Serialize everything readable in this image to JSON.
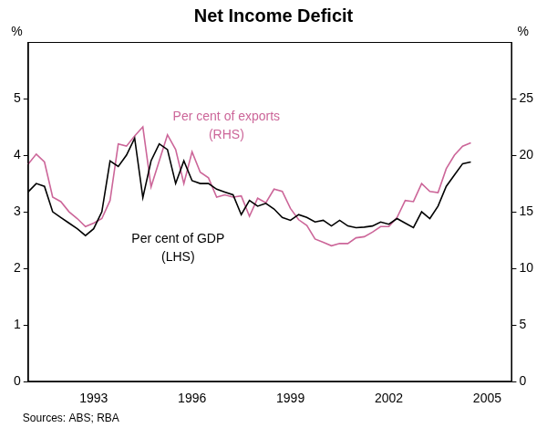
{
  "chart_data": {
    "type": "line",
    "title": "Net Income Deficit",
    "ylabel": "%",
    "y2label": "%",
    "source": "Sources: ABS; RBA",
    "categories": [
      null,
      null,
      null,
      null,
      null,
      null,
      null,
      null,
      "1993",
      null,
      null,
      null,
      null,
      null,
      null,
      null,
      null,
      null,
      null,
      null,
      "1996",
      null,
      null,
      null,
      null,
      null,
      null,
      null,
      null,
      null,
      null,
      null,
      "1999",
      null,
      null,
      null,
      null,
      null,
      null,
      null,
      null,
      null,
      null,
      null,
      "2002",
      null,
      null,
      null,
      null,
      null,
      null,
      null,
      null,
      null,
      null,
      null,
      "2005",
      null,
      null,
      null
    ],
    "series": [
      {
        "name": "Per cent of GDP (LHS)",
        "color": "#000000",
        "axis": "y",
        "values": [
          3.35,
          3.5,
          3.45,
          3.0,
          2.9,
          2.8,
          2.7,
          2.58,
          2.7,
          3.0,
          3.9,
          3.8,
          4.0,
          4.3,
          3.25,
          3.9,
          4.2,
          4.1,
          3.5,
          3.9,
          3.55,
          3.5,
          3.5,
          3.4,
          3.35,
          3.3,
          2.95,
          3.2,
          3.1,
          3.15,
          3.05,
          2.9,
          2.85,
          2.95,
          2.9,
          2.82,
          2.85,
          2.75,
          2.85,
          2.75,
          2.72,
          2.73,
          2.75,
          2.82,
          2.78,
          2.88,
          2.8,
          2.72,
          3.0,
          2.88,
          3.1,
          3.45,
          3.65,
          3.85,
          3.88,
          null,
          null,
          null,
          null,
          null
        ]
      },
      {
        "name": "Per cent of exports (RHS)",
        "color": "#cc6699",
        "axis": "y2",
        "values": [
          19.2,
          20.1,
          19.4,
          16.3,
          15.9,
          15.0,
          14.4,
          13.7,
          14.0,
          14.4,
          16.0,
          21.0,
          20.8,
          21.7,
          22.5,
          17.2,
          19.5,
          21.8,
          20.5,
          17.5,
          20.3,
          18.5,
          18.0,
          16.3,
          16.5,
          16.3,
          16.4,
          14.6,
          16.2,
          15.8,
          17.0,
          16.8,
          15.3,
          14.3,
          13.8,
          12.6,
          12.3,
          12.0,
          12.2,
          12.2,
          12.7,
          12.8,
          13.2,
          13.7,
          13.7,
          14.5,
          16.0,
          15.9,
          17.5,
          16.8,
          16.7,
          18.8,
          20.0,
          20.8,
          21.1,
          null,
          null,
          null,
          null,
          null
        ]
      }
    ],
    "ylim": [
      0,
      6
    ],
    "yticks": [
      0,
      1,
      2,
      3,
      4,
      5
    ],
    "y2lim": [
      0,
      30
    ],
    "y2ticks": [
      0,
      5,
      10,
      15,
      20,
      25
    ],
    "grid": false
  }
}
